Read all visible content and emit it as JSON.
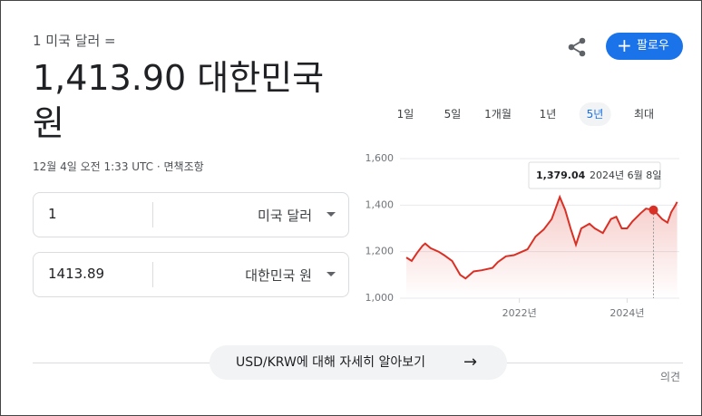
{
  "header": {
    "prefix": "1 미국 달러 =",
    "amount": "1,413.90 대한민국 원",
    "timestamp": "12월 4일 오전 1:33 UTC · 면책조항"
  },
  "follow_button": "팔로우",
  "converter": {
    "rows": [
      {
        "amount": "1",
        "currency": "미국 달러"
      },
      {
        "amount": "1413.89",
        "currency": "대한민국 원"
      }
    ]
  },
  "ranges": {
    "items": [
      "1일",
      "5일",
      "1개월",
      "1년",
      "5년",
      "최대"
    ],
    "selected": 4
  },
  "chart_data": {
    "type": "line",
    "color": "#d93025",
    "x": [
      2019.9,
      2020.0,
      2020.1,
      2020.2,
      2020.25,
      2020.35,
      2020.5,
      2020.6,
      2020.75,
      2020.9,
      2021.0,
      2021.15,
      2021.3,
      2021.5,
      2021.6,
      2021.75,
      2021.9,
      2022.0,
      2022.15,
      2022.3,
      2022.45,
      2022.6,
      2022.75,
      2022.85,
      2022.95,
      2023.05,
      2023.15,
      2023.3,
      2023.4,
      2023.55,
      2023.7,
      2023.8,
      2023.9,
      2024.0,
      2024.1,
      2024.25,
      2024.35,
      2024.49,
      2024.55,
      2024.65,
      2024.75,
      2024.82,
      2024.9,
      2024.93
    ],
    "values": [
      1175,
      1160,
      1195,
      1225,
      1235,
      1215,
      1200,
      1185,
      1160,
      1100,
      1085,
      1115,
      1120,
      1130,
      1155,
      1180,
      1185,
      1195,
      1210,
      1265,
      1295,
      1340,
      1435,
      1380,
      1300,
      1230,
      1300,
      1320,
      1300,
      1280,
      1340,
      1350,
      1300,
      1300,
      1330,
      1365,
      1385,
      1379.04,
      1365,
      1340,
      1325,
      1370,
      1400,
      1413.9
    ],
    "xlim": [
      2019.9,
      2024.97
    ],
    "ylim": [
      1000,
      1600
    ],
    "yticks": [
      {
        "value": 1000,
        "label": "1,000"
      },
      {
        "value": 1200,
        "label": "1,200"
      },
      {
        "value": 1400,
        "label": "1,400"
      },
      {
        "value": 1600,
        "label": "1,600"
      }
    ],
    "xticks": [
      {
        "value": 2022,
        "label": "2022년"
      },
      {
        "value": 2024,
        "label": "2024년"
      }
    ],
    "tooltip": {
      "x": 2024.49,
      "value": 1379.04,
      "value_label": "1,379.04",
      "date": "2024년 6월 8일"
    }
  },
  "more_button": "USD/KRW에 대해 자세히 알아보기",
  "feedback": "의견"
}
